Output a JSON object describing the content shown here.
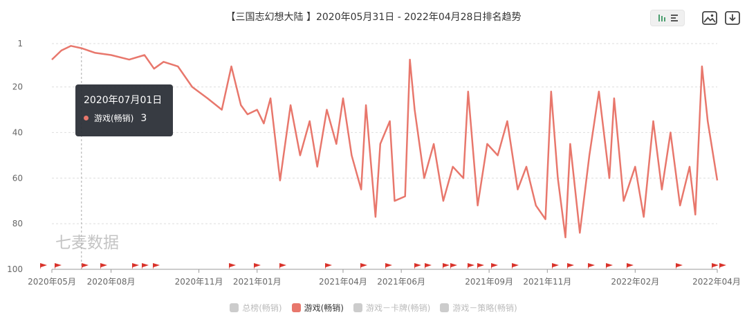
{
  "title": "【三国志幻想大陆 】2020年05月31日 - 2022年04月28日排名趋势",
  "watermark": "七麦数据",
  "toolbar": {
    "view_icon": "bar-list-toggle-icon",
    "image_icon": "image-icon",
    "download_icon": "download-icon"
  },
  "tooltip": {
    "date": "2020年07月01日",
    "series": "游戏(畅销)",
    "value": "3"
  },
  "legend": [
    {
      "label": "总榜(畅销)",
      "color": "#cccccc",
      "active": false
    },
    {
      "label": "游戏(畅销)",
      "color": "#e8776c",
      "active": true
    },
    {
      "label": "游戏－卡牌(畅销)",
      "color": "#cccccc",
      "active": false
    },
    {
      "label": "游戏－策略(畅销)",
      "color": "#cccccc",
      "active": false
    }
  ],
  "colors": {
    "line": "#e8776c",
    "flag": "#d9332b",
    "grid": "#dddddd",
    "tooltip_bg": "#282c34"
  },
  "chart_data": {
    "type": "line",
    "inverted_y": true,
    "ylim": [
      1,
      100
    ],
    "y_ticks": [
      1,
      20,
      40,
      60,
      80,
      100
    ],
    "x_tick_labels": [
      "2020年05月",
      "2020年08月",
      "2020年11月",
      "2021年01月",
      "2021年04月",
      "2021年06月",
      "2021年09月",
      "2021年11月",
      "2022年02月",
      "2022年04月"
    ],
    "x_tick_dates": [
      "2020-05-31",
      "2020-08-01",
      "2020-11-01",
      "2021-01-01",
      "2021-04-01",
      "2021-06-01",
      "2021-09-01",
      "2021-11-01",
      "2022-02-01",
      "2022-04-28"
    ],
    "grid": true,
    "series": [
      {
        "name": "游戏(畅销)",
        "points": [
          [
            "2020-05-31",
            8
          ],
          [
            "2020-06-10",
            4
          ],
          [
            "2020-06-20",
            2
          ],
          [
            "2020-07-01",
            3
          ],
          [
            "2020-07-15",
            5
          ],
          [
            "2020-08-01",
            6
          ],
          [
            "2020-08-20",
            8
          ],
          [
            "2020-09-05",
            6
          ],
          [
            "2020-09-15",
            12
          ],
          [
            "2020-09-25",
            9
          ],
          [
            "2020-10-10",
            11
          ],
          [
            "2020-10-25",
            20
          ],
          [
            "2020-11-10",
            25
          ],
          [
            "2020-11-25",
            30
          ],
          [
            "2020-12-05",
            11
          ],
          [
            "2020-12-15",
            28
          ],
          [
            "2020-12-22",
            32
          ],
          [
            "2021-01-01",
            30
          ],
          [
            "2021-01-08",
            36
          ],
          [
            "2021-01-15",
            25
          ],
          [
            "2021-01-25",
            61
          ],
          [
            "2021-02-05",
            28
          ],
          [
            "2021-02-15",
            50
          ],
          [
            "2021-02-25",
            35
          ],
          [
            "2021-03-05",
            55
          ],
          [
            "2021-03-15",
            30
          ],
          [
            "2021-03-25",
            45
          ],
          [
            "2021-04-01",
            25
          ],
          [
            "2021-04-10",
            50
          ],
          [
            "2021-04-20",
            65
          ],
          [
            "2021-04-25",
            28
          ],
          [
            "2021-05-05",
            77
          ],
          [
            "2021-05-10",
            45
          ],
          [
            "2021-05-20",
            35
          ],
          [
            "2021-05-25",
            70
          ],
          [
            "2021-06-05",
            68
          ],
          [
            "2021-06-10",
            8
          ],
          [
            "2021-06-15",
            30
          ],
          [
            "2021-06-25",
            60
          ],
          [
            "2021-07-05",
            45
          ],
          [
            "2021-07-15",
            70
          ],
          [
            "2021-07-25",
            55
          ],
          [
            "2021-08-05",
            60
          ],
          [
            "2021-08-10",
            22
          ],
          [
            "2021-08-20",
            72
          ],
          [
            "2021-08-30",
            45
          ],
          [
            "2021-09-10",
            50
          ],
          [
            "2021-09-20",
            35
          ],
          [
            "2021-10-01",
            65
          ],
          [
            "2021-10-10",
            55
          ],
          [
            "2021-10-20",
            72
          ],
          [
            "2021-10-30",
            78
          ],
          [
            "2021-11-05",
            22
          ],
          [
            "2021-11-12",
            60
          ],
          [
            "2021-11-20",
            86
          ],
          [
            "2021-11-25",
            45
          ],
          [
            "2021-12-05",
            84
          ],
          [
            "2021-12-15",
            50
          ],
          [
            "2021-12-25",
            22
          ],
          [
            "2022-01-05",
            60
          ],
          [
            "2022-01-10",
            25
          ],
          [
            "2022-01-20",
            70
          ],
          [
            "2022-02-01",
            55
          ],
          [
            "2022-02-10",
            77
          ],
          [
            "2022-02-20",
            35
          ],
          [
            "2022-03-01",
            65
          ],
          [
            "2022-03-10",
            40
          ],
          [
            "2022-03-20",
            72
          ],
          [
            "2022-03-30",
            55
          ],
          [
            "2022-04-05",
            76
          ],
          [
            "2022-04-12",
            11
          ],
          [
            "2022-04-18",
            35
          ],
          [
            "2022-04-28",
            61
          ]
        ]
      }
    ]
  }
}
